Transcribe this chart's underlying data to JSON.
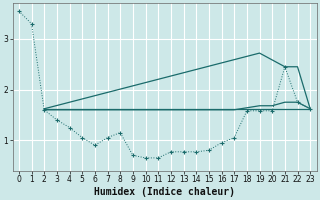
{
  "xlabel": "Humidex (Indice chaleur)",
  "bg_color": "#cde8e8",
  "grid_color": "#ffffff",
  "line_color": "#1a6b6b",
  "xlim": [
    -0.5,
    23.5
  ],
  "ylim": [
    0.4,
    3.7
  ],
  "yticks": [
    1,
    2,
    3
  ],
  "xticks": [
    0,
    1,
    2,
    3,
    4,
    5,
    6,
    7,
    8,
    9,
    10,
    11,
    12,
    13,
    14,
    15,
    16,
    17,
    18,
    19,
    20,
    21,
    22,
    23
  ],
  "series1_x": [
    0,
    1,
    2,
    3,
    4,
    5,
    6,
    7,
    8,
    9,
    10,
    11,
    12,
    13,
    14,
    15,
    16,
    17,
    18,
    19,
    20,
    21,
    22,
    23
  ],
  "series1_y": [
    3.55,
    3.3,
    1.6,
    1.4,
    1.25,
    1.05,
    0.9,
    1.05,
    1.15,
    0.7,
    0.65,
    0.65,
    0.77,
    0.77,
    0.77,
    0.8,
    0.95,
    1.05,
    1.58,
    1.58,
    1.58,
    2.45,
    1.75,
    1.62
  ],
  "series2_x": [
    2,
    23
  ],
  "series2_y": [
    1.62,
    1.62
  ],
  "series3_x": [
    2,
    19,
    21,
    22,
    23
  ],
  "series3_y": [
    1.62,
    2.72,
    2.45,
    2.45,
    1.62
  ],
  "series4_x": [
    2,
    17,
    19,
    20,
    21,
    22,
    23
  ],
  "series4_y": [
    1.6,
    1.6,
    1.68,
    1.68,
    1.75,
    1.75,
    1.62
  ]
}
